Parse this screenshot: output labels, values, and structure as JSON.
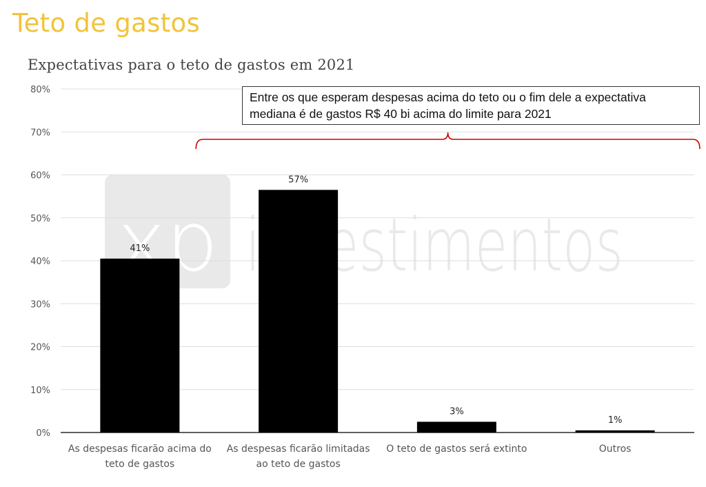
{
  "page": {
    "title": "Teto de gastos",
    "title_color": "#f2c33a"
  },
  "watermark": {
    "logo_text": "xp",
    "wordmark": "investimentos",
    "color": "#e9e9e9"
  },
  "annotation": {
    "text": "Entre os que esperam despesas acima do teto ou o fim dele a expectativa mediana é de gastos R$ 40 bi acima do limite para 2021",
    "bracket_color": "#cc0000",
    "bracket_spans_categories": [
      1,
      3
    ]
  },
  "chart_data": {
    "type": "bar",
    "title": "Expectativas para o teto de gastos em 2021",
    "xlabel": "",
    "ylabel": "",
    "categories": [
      [
        "As despesas ficarão acima do",
        "teto de gastos"
      ],
      [
        "As despesas ficarão limitadas",
        "ao teto de gastos"
      ],
      [
        "O teto de gastos será extinto"
      ],
      [
        "Outros"
      ]
    ],
    "values": [
      40.5,
      56.5,
      2.5,
      0.5
    ],
    "data_labels": [
      "41%",
      "57%",
      "3%",
      "1%"
    ],
    "ylim": [
      0,
      80
    ],
    "yticks": [
      0,
      10,
      20,
      30,
      40,
      50,
      60,
      70,
      80
    ],
    "ytick_labels": [
      "0%",
      "10%",
      "20%",
      "30%",
      "40%",
      "50%",
      "60%",
      "70%",
      "80%"
    ],
    "grid": true,
    "legend": "none",
    "bar_color": "#000000",
    "grid_color": "#dddddd"
  }
}
